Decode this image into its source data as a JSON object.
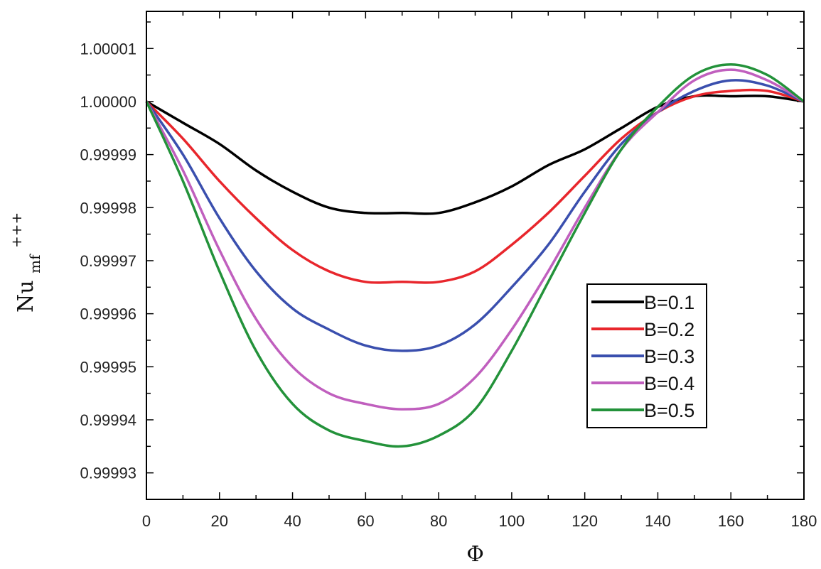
{
  "chart_data": {
    "type": "line",
    "title": "",
    "xlabel": "Φ",
    "ylabel": {
      "base": "Nu",
      "sub": "mf",
      "sup": "+++"
    },
    "xlim": [
      0,
      180
    ],
    "ylim": [
      0.999925,
      1.000017
    ],
    "x_ticks": [
      0,
      20,
      40,
      60,
      80,
      100,
      120,
      140,
      160,
      180
    ],
    "x_tick_labels": [
      "0",
      "20",
      "40",
      "60",
      "80",
      "100",
      "120",
      "140",
      "160",
      "180"
    ],
    "y_ticks": [
      0.99993,
      0.99994,
      0.99995,
      0.99996,
      0.99997,
      0.99998,
      0.99999,
      1.0,
      1.00001
    ],
    "y_tick_labels": [
      "0.99993",
      "0.99994",
      "0.99995",
      "0.99996",
      "0.99997",
      "0.99998",
      "0.99999",
      "1.00000",
      "1.00001"
    ],
    "grid": false,
    "legend_position": "right",
    "x": [
      0,
      10,
      20,
      30,
      40,
      50,
      60,
      70,
      80,
      90,
      100,
      110,
      120,
      130,
      140,
      150,
      160,
      170,
      180
    ],
    "series": [
      {
        "name": "B=0.1",
        "color": "#000000",
        "values": [
          1.0,
          0.999996,
          0.999992,
          0.999987,
          0.999983,
          0.99998,
          0.999979,
          0.999979,
          0.999979,
          0.999981,
          0.999984,
          0.999988,
          0.999991,
          0.999995,
          0.999999,
          1.000001,
          1.000001,
          1.000001,
          1.0
        ]
      },
      {
        "name": "B=0.2",
        "color": "#e8262c",
        "values": [
          1.0,
          0.999993,
          0.999985,
          0.999978,
          0.999972,
          0.999968,
          0.999966,
          0.999966,
          0.999966,
          0.999968,
          0.999973,
          0.999979,
          0.999986,
          0.999993,
          0.999998,
          1.000001,
          1.000002,
          1.000002,
          1.0
        ]
      },
      {
        "name": "B=0.3",
        "color": "#3a4fae",
        "values": [
          1.0,
          0.99999,
          0.999978,
          0.999968,
          0.999961,
          0.999957,
          0.999954,
          0.999953,
          0.999954,
          0.999958,
          0.999965,
          0.999973,
          0.999983,
          0.999992,
          0.999998,
          1.000002,
          1.000004,
          1.000003,
          1.0
        ]
      },
      {
        "name": "B=0.4",
        "color": "#c05fbe",
        "values": [
          1.0,
          0.999987,
          0.999972,
          0.999959,
          0.99995,
          0.999945,
          0.999943,
          0.999942,
          0.999943,
          0.999948,
          0.999957,
          0.999968,
          0.99998,
          0.999991,
          0.999998,
          1.000004,
          1.000006,
          1.000004,
          1.0
        ]
      },
      {
        "name": "B=0.5",
        "color": "#23923a",
        "values": [
          1.0,
          0.999985,
          0.999968,
          0.999953,
          0.999943,
          0.999938,
          0.999936,
          0.999935,
          0.999937,
          0.999942,
          0.999953,
          0.999966,
          0.999979,
          0.999991,
          0.999999,
          1.000005,
          1.000007,
          1.000005,
          1.0
        ]
      }
    ]
  }
}
